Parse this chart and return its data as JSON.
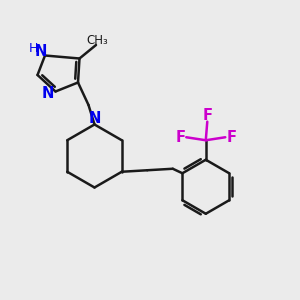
{
  "bg_color": "#ebebeb",
  "bond_color": "#1a1a1a",
  "n_color": "#0000ee",
  "f_color": "#cc00cc",
  "line_width": 1.8,
  "font_size": 10.5,
  "small_font_size": 9.0,
  "xlim": [
    0,
    10
  ],
  "ylim": [
    0,
    10
  ]
}
